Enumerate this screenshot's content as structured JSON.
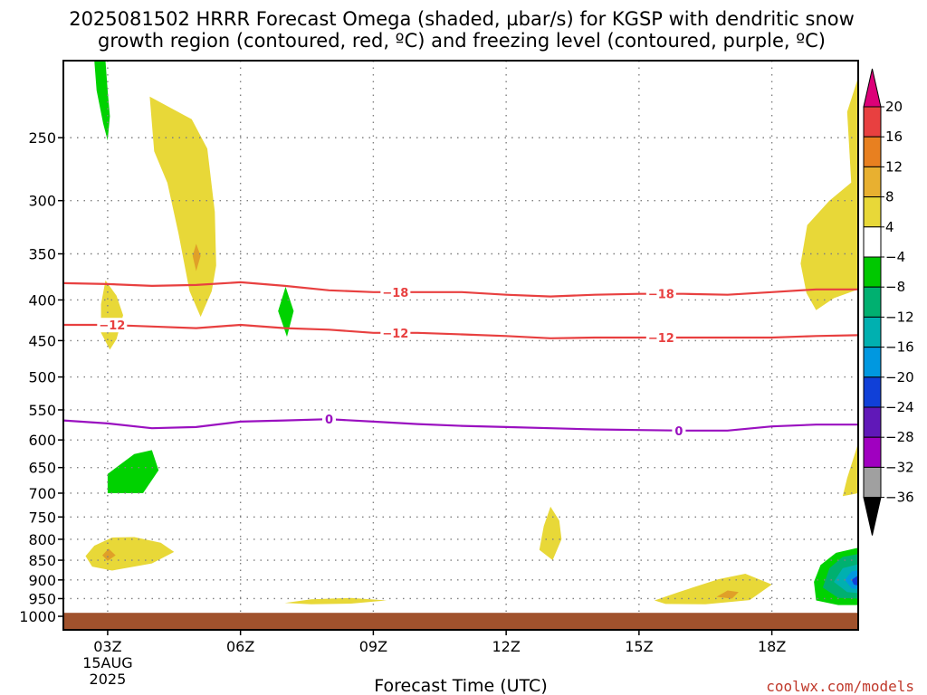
{
  "title": {
    "line1": "2025081502 HRRR Forecast Omega (shaded, µbar/s) for KGSP with dendritic snow",
    "line2": "growth region (contoured, red, ºC) and freezing level (contoured, purple, ºC)"
  },
  "credit": "coolwx.com/models",
  "chart_data": {
    "type": "heatmap",
    "title": "2025081502 HRRR Forecast Omega (shaded, µbar/s) for KGSP with dendritic snow growth region (contoured, red, ºC) and freezing level (contoured, purple, ºC)",
    "xlabel": "Forecast Time (UTC)",
    "ylabel": "",
    "x_ticks": [
      {
        "hour": 3,
        "label": "03Z",
        "sub1": "15AUG",
        "sub2": "2025"
      },
      {
        "hour": 6,
        "label": "06Z"
      },
      {
        "hour": 9,
        "label": "09Z"
      },
      {
        "hour": 12,
        "label": "12Z"
      },
      {
        "hour": 15,
        "label": "15Z"
      },
      {
        "hour": 18,
        "label": "18Z"
      }
    ],
    "xlim": [
      2,
      19.95
    ],
    "y_ticks": [
      250,
      300,
      350,
      400,
      450,
      500,
      550,
      600,
      650,
      700,
      750,
      800,
      850,
      900,
      950,
      1000
    ],
    "ylim_hpa": [
      1040,
      200
    ],
    "yscale": "log-pressure",
    "ground_level_hpa": 990,
    "colorbar": {
      "labels": [
        "20",
        "16",
        "12",
        "8",
        "4",
        "−4",
        "−8",
        "−12",
        "−16",
        "−20",
        "−24",
        "−28",
        "−32",
        "−36"
      ],
      "colors": [
        "#dc0078",
        "#e84040",
        "#e88020",
        "#e8b030",
        "#e8d838",
        "#ffffff",
        "#00c800",
        "#00b070",
        "#00b0b0",
        "#0098e0",
        "#1040d8",
        "#6018b8",
        "#a000c0",
        "#a0a0a0",
        "#000000"
      ]
    },
    "omega_regions": [
      {
        "color": "#00d200",
        "pts": [
          [
            2.7,
            200
          ],
          [
            2.95,
            200
          ],
          [
            3.0,
            218
          ],
          [
            3.05,
            235
          ],
          [
            3.0,
            252
          ],
          [
            2.9,
            240
          ],
          [
            2.75,
            218
          ]
        ]
      },
      {
        "color": "#e8d838",
        "pts": [
          [
            3.95,
            222
          ],
          [
            4.9,
            237
          ],
          [
            5.25,
            258
          ],
          [
            5.42,
            310
          ],
          [
            5.45,
            362
          ],
          [
            5.35,
            390
          ],
          [
            5.1,
            420
          ],
          [
            4.85,
            390
          ],
          [
            4.6,
            330
          ],
          [
            4.35,
            285
          ],
          [
            4.05,
            260
          ]
        ]
      },
      {
        "color": "#e0a028",
        "pts": [
          [
            5.0,
            340
          ],
          [
            5.1,
            352
          ],
          [
            5.0,
            368
          ],
          [
            4.92,
            352
          ]
        ]
      },
      {
        "color": "#e8d838",
        "pts": [
          [
            2.95,
            378
          ],
          [
            3.2,
            395
          ],
          [
            3.35,
            418
          ],
          [
            3.2,
            448
          ],
          [
            3.05,
            462
          ],
          [
            2.85,
            440
          ],
          [
            2.85,
            405
          ]
        ]
      },
      {
        "color": "#00d200",
        "pts": [
          [
            7.02,
            385
          ],
          [
            7.2,
            413
          ],
          [
            7.05,
            445
          ],
          [
            6.85,
            413
          ]
        ]
      },
      {
        "color": "#e8d838",
        "pts": [
          [
            18.65,
            360
          ],
          [
            18.8,
            322
          ],
          [
            19.3,
            300
          ],
          [
            19.95,
            280
          ],
          [
            19.95,
            388
          ],
          [
            19.4,
            398
          ],
          [
            19.0,
            412
          ],
          [
            18.78,
            392
          ]
        ]
      },
      {
        "color": "#e8d838",
        "pts": [
          [
            19.7,
            232
          ],
          [
            19.95,
            210
          ],
          [
            19.95,
            295
          ],
          [
            19.8,
            290
          ]
        ]
      },
      {
        "color": "#00d200",
        "pts": [
          [
            3.0,
            662
          ],
          [
            3.6,
            625
          ],
          [
            4.0,
            618
          ],
          [
            4.15,
            655
          ],
          [
            3.8,
            700
          ],
          [
            3.0,
            700
          ]
        ]
      },
      {
        "color": "#e8d838",
        "pts": [
          [
            19.6,
            706
          ],
          [
            19.95,
            700
          ],
          [
            19.95,
            605
          ],
          [
            19.9,
            618
          ],
          [
            19.7,
            670
          ]
        ]
      },
      {
        "color": "#e8d838",
        "pts": [
          [
            2.5,
            840
          ],
          [
            2.7,
            815
          ],
          [
            3.1,
            796
          ],
          [
            3.6,
            795
          ],
          [
            4.2,
            808
          ],
          [
            4.5,
            830
          ],
          [
            4.0,
            858
          ],
          [
            3.1,
            876
          ],
          [
            2.65,
            866
          ]
        ]
      },
      {
        "color": "#e0a028",
        "pts": [
          [
            3.02,
            822
          ],
          [
            3.18,
            838
          ],
          [
            3.0,
            852
          ],
          [
            2.88,
            838
          ]
        ]
      },
      {
        "color": "#e8d838",
        "pts": [
          [
            12.75,
            825
          ],
          [
            12.85,
            770
          ],
          [
            13.0,
            728
          ],
          [
            13.2,
            758
          ],
          [
            13.25,
            800
          ],
          [
            13.05,
            850
          ]
        ]
      },
      {
        "color": "#e8d838",
        "pts": [
          [
            7.0,
            962
          ],
          [
            7.6,
            952
          ],
          [
            8.5,
            948
          ],
          [
            9.3,
            955
          ],
          [
            8.5,
            964
          ],
          [
            7.6,
            966
          ]
        ]
      },
      {
        "color": "#e8d838",
        "pts": [
          [
            15.35,
            955
          ],
          [
            15.9,
            932
          ],
          [
            16.8,
            898
          ],
          [
            17.4,
            884
          ],
          [
            18.0,
            912
          ],
          [
            17.5,
            954
          ],
          [
            16.5,
            966
          ],
          [
            15.6,
            965
          ]
        ]
      },
      {
        "color": "#e0a028",
        "pts": [
          [
            16.75,
            945
          ],
          [
            17.0,
            928
          ],
          [
            17.25,
            932
          ],
          [
            17.1,
            950
          ]
        ]
      },
      {
        "color": "#00d200",
        "pts": [
          [
            19.0,
            955
          ],
          [
            18.95,
            905
          ],
          [
            19.1,
            862
          ],
          [
            19.45,
            832
          ],
          [
            19.95,
            820
          ],
          [
            19.95,
            968
          ],
          [
            19.5,
            968
          ]
        ]
      },
      {
        "color": "#00b070",
        "pts": [
          [
            19.15,
            920
          ],
          [
            19.3,
            870
          ],
          [
            19.6,
            842
          ],
          [
            19.95,
            835
          ],
          [
            19.95,
            950
          ],
          [
            19.5,
            948
          ]
        ]
      },
      {
        "color": "#00b0b0",
        "pts": [
          [
            19.4,
            905
          ],
          [
            19.6,
            870
          ],
          [
            19.95,
            860
          ],
          [
            19.95,
            935
          ],
          [
            19.7,
            932
          ]
        ]
      },
      {
        "color": "#0098e0",
        "pts": [
          [
            19.65,
            900
          ],
          [
            19.8,
            878
          ],
          [
            19.95,
            875
          ],
          [
            19.95,
            925
          ],
          [
            19.8,
            922
          ]
        ]
      },
      {
        "color": "#1040d8",
        "pts": [
          [
            19.8,
            900
          ],
          [
            19.95,
            888
          ],
          [
            19.95,
            915
          ],
          [
            19.85,
            912
          ]
        ]
      }
    ],
    "series": [
      {
        "name": "-18",
        "color": "#e84040",
        "label": "−18",
        "x": [
          2,
          3,
          4,
          5,
          6,
          7,
          8,
          9,
          10,
          11,
          12,
          13,
          14,
          15,
          16,
          17,
          18,
          19,
          19.95
        ],
        "y": [
          381,
          382,
          384,
          383,
          380,
          384,
          389,
          391,
          391,
          391,
          394,
          396,
          394,
          393,
          393,
          394,
          391,
          388,
          388
        ],
        "label_at": [
          9.5,
          15.5
        ]
      },
      {
        "name": "-12",
        "color": "#e84040",
        "label": "−12",
        "x": [
          2,
          3,
          4,
          5,
          6,
          7,
          8,
          9,
          10,
          11,
          12,
          13,
          14,
          15,
          16,
          17,
          18,
          19,
          19.95
        ],
        "y": [
          430,
          430,
          432,
          434,
          430,
          434,
          436,
          440,
          440,
          442,
          444,
          447,
          446,
          446,
          446,
          446,
          446,
          444,
          443
        ],
        "label_at": [
          3.1,
          9.5,
          15.5
        ]
      },
      {
        "name": "0",
        "color": "#9a10c0",
        "label": "0",
        "x": [
          2,
          3,
          4,
          5,
          6,
          7,
          8,
          9,
          10,
          11,
          12,
          13,
          14,
          15,
          16,
          17,
          18,
          19,
          19.95
        ],
        "y": [
          567,
          572,
          580,
          578,
          569,
          567,
          565,
          569,
          573,
          576,
          578,
          580,
          582,
          583,
          584,
          584,
          577,
          574,
          574
        ],
        "label_at": [
          8.0,
          15.9
        ]
      }
    ]
  }
}
